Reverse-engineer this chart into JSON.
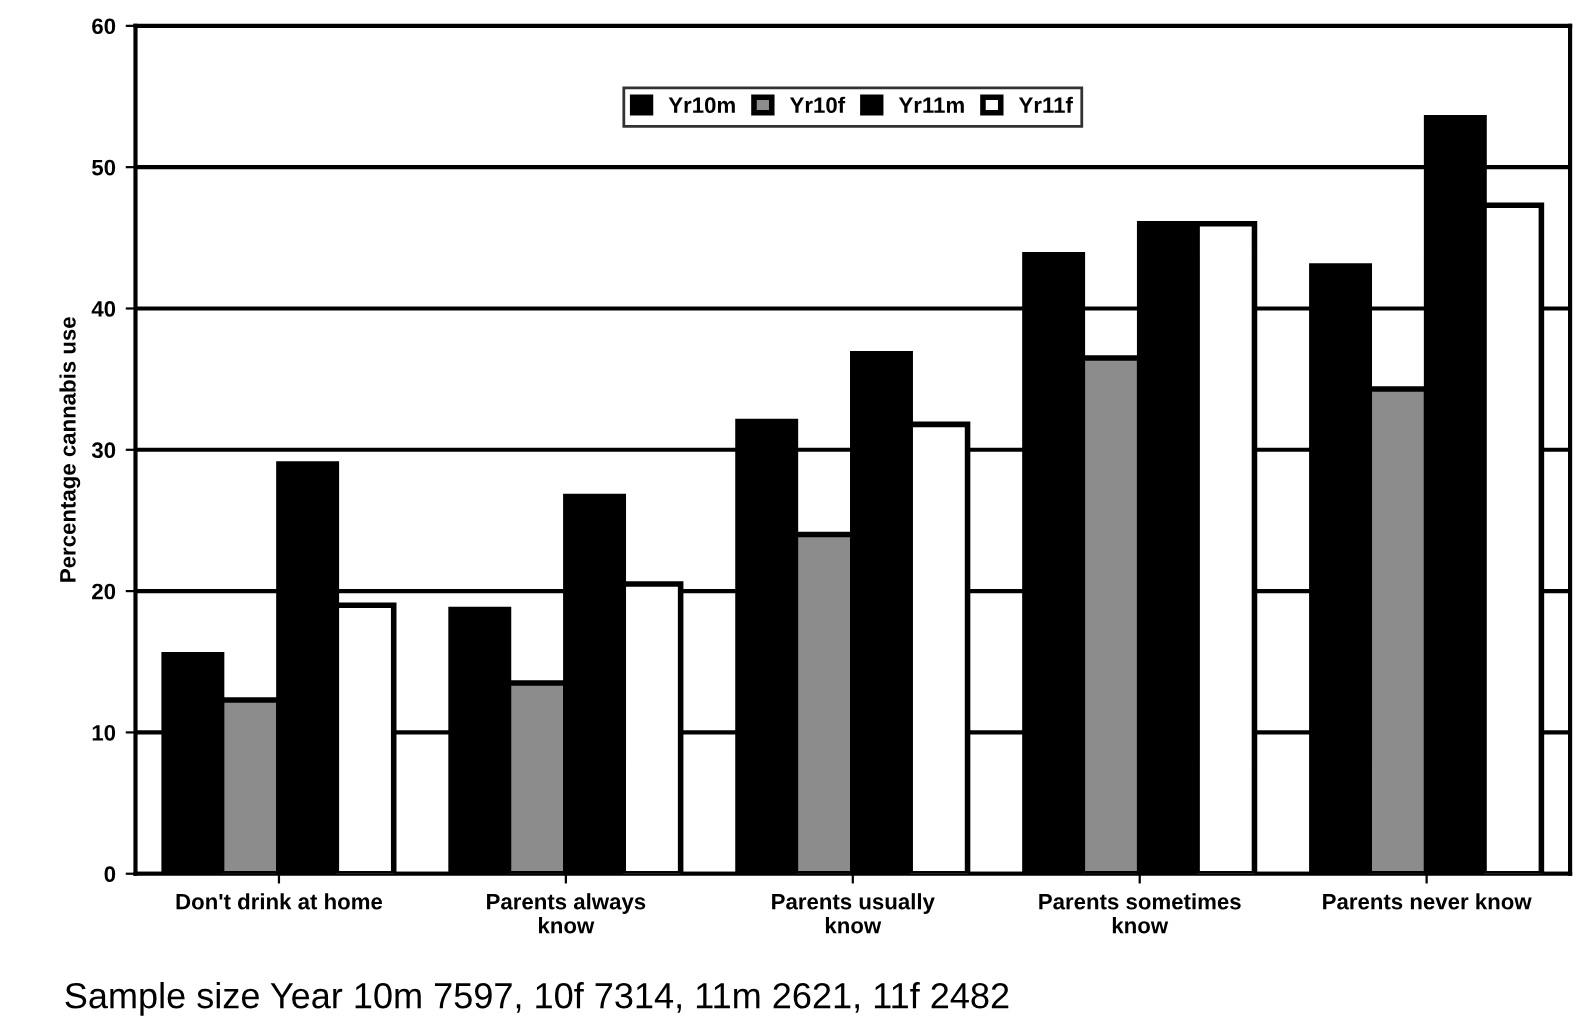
{
  "chart_data": {
    "type": "bar",
    "ylabel": "Percentage cannabis use",
    "categories": [
      "Don't drink at home",
      "Parents always\nknow",
      "Parents usually\nknow",
      "Parents sometimes\nknow",
      "Parents never know"
    ],
    "series": [
      {
        "name": "Yr10m",
        "color": "#000000",
        "values": [
          15.5,
          18.7,
          32,
          43.8,
          43
        ]
      },
      {
        "name": "Yr10f",
        "color": "#8c8c8c",
        "values": [
          12.3,
          13.5,
          24,
          36.5,
          34.3
        ]
      },
      {
        "name": "Yr11m",
        "color": "#000000",
        "values": [
          29,
          26.7,
          36.8,
          46,
          53.5
        ]
      },
      {
        "name": "Yr11f",
        "color": "#ffffff",
        "values": [
          19,
          20.5,
          31.8,
          46,
          47.3
        ]
      }
    ],
    "ylim": [
      0,
      60
    ],
    "yticks": [
      0,
      10,
      20,
      30,
      40,
      50,
      60
    ],
    "grid": "y",
    "legend": "top",
    "annotations": [
      "Sample size Year 10m 7597, 10f 7314, 11m 2621, 11f 2482"
    ]
  }
}
